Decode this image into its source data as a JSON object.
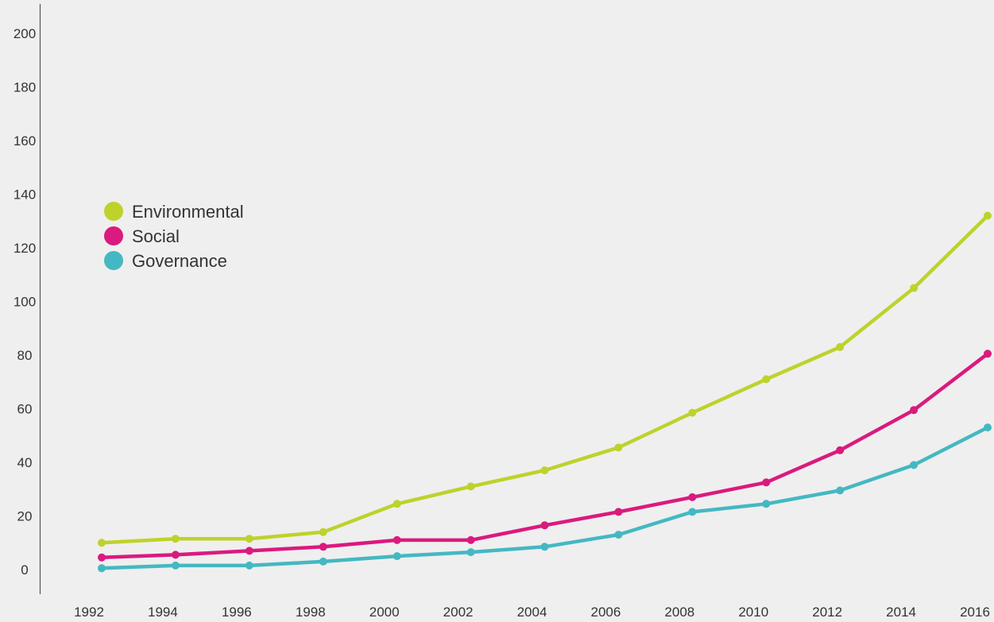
{
  "chart_data": {
    "type": "line",
    "x": [
      1992,
      1994,
      1996,
      1998,
      2000,
      2002,
      2004,
      2006,
      2008,
      2010,
      2012,
      2014,
      2016
    ],
    "xticks": [
      "1992",
      "1994",
      "1996",
      "1998",
      "2000",
      "2002",
      "2004",
      "2006",
      "2008",
      "2010",
      "2012",
      "2014",
      "2016"
    ],
    "yticks": [
      "0",
      "20",
      "40",
      "60",
      "80",
      "100",
      "120",
      "140",
      "160",
      "180",
      "200"
    ],
    "ylim": [
      0,
      200
    ],
    "series": [
      {
        "name": "Environmental",
        "color": "#bed22b",
        "values": [
          10,
          11.5,
          11.5,
          14,
          24.5,
          31,
          37,
          45.5,
          58.5,
          71,
          83,
          105,
          132
        ]
      },
      {
        "name": "Social",
        "color": "#da1a7e",
        "values": [
          4.5,
          5.5,
          7,
          8.5,
          11,
          11,
          16.5,
          21.5,
          27,
          32.5,
          44.5,
          59.5,
          80.5
        ]
      },
      {
        "name": "Governance",
        "color": "#44b8c2",
        "values": [
          0.5,
          1.5,
          1.5,
          3,
          5,
          6.5,
          8.5,
          13,
          21.5,
          24.5,
          29.5,
          39,
          53
        ]
      }
    ],
    "legend": "left",
    "grid": false,
    "title": "",
    "xlabel": "",
    "ylabel": ""
  }
}
